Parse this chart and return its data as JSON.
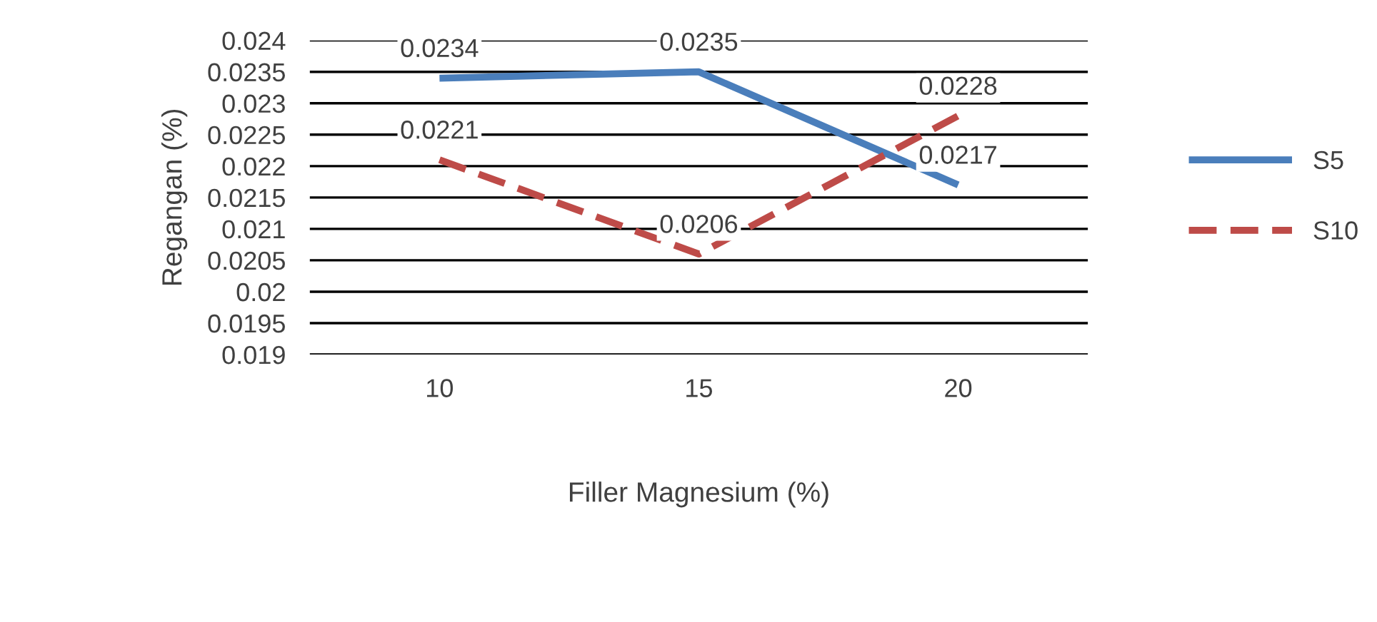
{
  "chart_data": {
    "type": "line",
    "xlabel": "Filler Magnesium (%)",
    "ylabel": "Regangan (%)",
    "categories": [
      "10",
      "15",
      "20"
    ],
    "series": [
      {
        "name": "S5",
        "color": "#4a7ebb",
        "values": [
          0.0234,
          0.0235,
          0.0217
        ],
        "line_style": "solid"
      },
      {
        "name": "S10",
        "color": "#be4b48",
        "values": [
          0.0221,
          0.0206,
          0.0228
        ],
        "line_style": "dashed"
      }
    ],
    "ylim": [
      0.019,
      0.024
    ],
    "yticks": [
      0.019,
      0.0195,
      0.02,
      0.0205,
      0.021,
      0.0215,
      0.022,
      0.0225,
      0.023,
      0.0235,
      0.024
    ],
    "grid": "y",
    "legend": "right",
    "data_labels": true,
    "marker": "none"
  }
}
